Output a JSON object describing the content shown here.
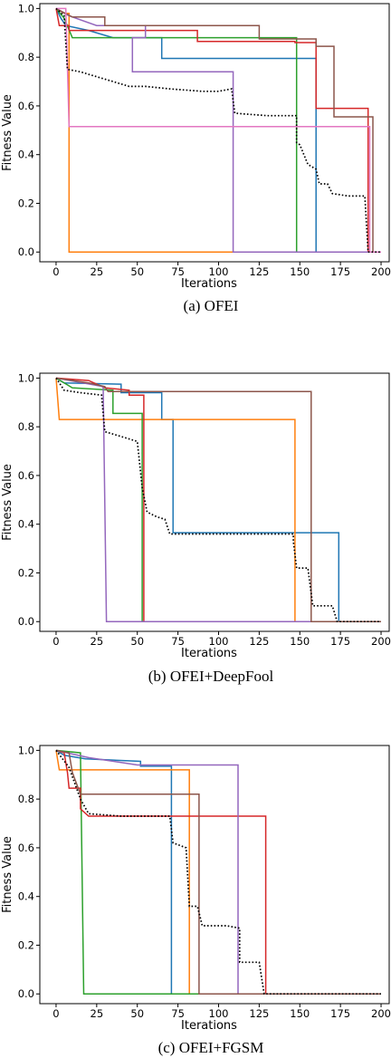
{
  "chart_data": [
    {
      "type": "line",
      "caption": "(a)  OFEI",
      "xlabel": "Iterations",
      "ylabel": "Fitness Value",
      "xlim": [
        -10,
        205
      ],
      "ylim": [
        -0.04,
        1.02
      ],
      "xticks": [
        0,
        25,
        50,
        75,
        100,
        125,
        150,
        175,
        200
      ],
      "yticks": [
        0.0,
        0.2,
        0.4,
        0.6,
        0.8,
        1.0
      ],
      "grid": false,
      "series": [
        {
          "color": "#1f77b4",
          "style": "solid",
          "points": [
            [
              0,
              1.0
            ],
            [
              3,
              0.96
            ],
            [
              6,
              0.93
            ],
            [
              20,
              0.91
            ],
            [
              35,
              0.88
            ],
            [
              65,
              0.88
            ],
            [
              65,
              0.795
            ],
            [
              160,
              0.795
            ],
            [
              160,
              0.0
            ],
            [
              200,
              0.0
            ]
          ]
        },
        {
          "color": "#ff7f0e",
          "style": "solid",
          "points": [
            [
              0,
              1.0
            ],
            [
              5,
              0.98
            ],
            [
              8,
              0.98
            ],
            [
              8,
              0.0
            ],
            [
              200,
              0.0
            ]
          ]
        },
        {
          "color": "#2ca02c",
          "style": "solid",
          "points": [
            [
              0,
              1.0
            ],
            [
              5,
              0.96
            ],
            [
              10,
              0.88
            ],
            [
              148,
              0.88
            ],
            [
              148,
              0.0
            ],
            [
              200,
              0.0
            ]
          ]
        },
        {
          "color": "#d62728",
          "style": "solid",
          "points": [
            [
              0,
              1.0
            ],
            [
              2,
              0.93
            ],
            [
              8,
              0.93
            ],
            [
              8,
              0.91
            ],
            [
              87,
              0.91
            ],
            [
              87,
              0.865
            ],
            [
              147,
              0.865
            ],
            [
              147,
              0.86
            ],
            [
              160,
              0.86
            ],
            [
              160,
              0.59
            ],
            [
              192,
              0.59
            ],
            [
              192,
              0.0
            ],
            [
              200,
              0.0
            ]
          ]
        },
        {
          "color": "#9467bd",
          "style": "solid",
          "points": [
            [
              0,
              1.0
            ],
            [
              8,
              0.97
            ],
            [
              25,
              0.93
            ],
            [
              55,
              0.93
            ],
            [
              55,
              0.88
            ],
            [
              47,
              0.88
            ],
            [
              47,
              0.74
            ],
            [
              109,
              0.74
            ],
            [
              109,
              0.0
            ],
            [
              200,
              0.0
            ]
          ]
        },
        {
          "color": "#8c564b",
          "style": "solid",
          "points": [
            [
              0,
              1.0
            ],
            [
              10,
              0.965
            ],
            [
              30,
              0.965
            ],
            [
              30,
              0.93
            ],
            [
              125,
              0.93
            ],
            [
              125,
              0.875
            ],
            [
              160,
              0.875
            ],
            [
              160,
              0.845
            ],
            [
              171,
              0.845
            ],
            [
              171,
              0.555
            ],
            [
              195,
              0.555
            ],
            [
              195,
              0.0
            ],
            [
              200,
              0.0
            ]
          ]
        },
        {
          "color": "#e377c2",
          "style": "solid",
          "points": [
            [
              0,
              1.0
            ],
            [
              6,
              1.0
            ],
            [
              8,
              0.515
            ],
            [
              193,
              0.515
            ],
            [
              193,
              0.0
            ],
            [
              200,
              0.0
            ]
          ]
        },
        {
          "color": "#000000",
          "style": "dotted",
          "points": [
            [
              0,
              1.0
            ],
            [
              5,
              0.97
            ],
            [
              7,
              0.75
            ],
            [
              15,
              0.74
            ],
            [
              25,
              0.72
            ],
            [
              35,
              0.7
            ],
            [
              45,
              0.68
            ],
            [
              55,
              0.68
            ],
            [
              70,
              0.67
            ],
            [
              90,
              0.66
            ],
            [
              100,
              0.66
            ],
            [
              108,
              0.67
            ],
            [
              110,
              0.57
            ],
            [
              130,
              0.56
            ],
            [
              148,
              0.56
            ],
            [
              148,
              0.45
            ],
            [
              150,
              0.44
            ],
            [
              155,
              0.36
            ],
            [
              160,
              0.34
            ],
            [
              162,
              0.28
            ],
            [
              167,
              0.28
            ],
            [
              170,
              0.24
            ],
            [
              180,
              0.23
            ],
            [
              190,
              0.23
            ],
            [
              192,
              0.0
            ],
            [
              200,
              0.0
            ]
          ]
        }
      ]
    },
    {
      "type": "line",
      "caption": "(b)  OFEI+DeepFool",
      "xlabel": "Iterations",
      "ylabel": "Fitness Value",
      "xlim": [
        -10,
        205
      ],
      "ylim": [
        -0.04,
        1.02
      ],
      "xticks": [
        0,
        25,
        50,
        75,
        100,
        125,
        150,
        175,
        200
      ],
      "yticks": [
        0.0,
        0.2,
        0.4,
        0.6,
        0.8,
        1.0
      ],
      "grid": false,
      "series": [
        {
          "color": "#1f77b4",
          "style": "solid",
          "points": [
            [
              0,
              1.0
            ],
            [
              5,
              0.98
            ],
            [
              40,
              0.975
            ],
            [
              40,
              0.94
            ],
            [
              65,
              0.94
            ],
            [
              65,
              0.83
            ],
            [
              72,
              0.83
            ],
            [
              72,
              0.365
            ],
            [
              174,
              0.365
            ],
            [
              174,
              0.0
            ],
            [
              200,
              0.0
            ]
          ]
        },
        {
          "color": "#ff7f0e",
          "style": "solid",
          "points": [
            [
              0,
              1.0
            ],
            [
              2,
              0.83
            ],
            [
              147,
              0.83
            ],
            [
              147,
              0.0
            ],
            [
              200,
              0.0
            ]
          ]
        },
        {
          "color": "#2ca02c",
          "style": "solid",
          "points": [
            [
              0,
              1.0
            ],
            [
              10,
              0.96
            ],
            [
              35,
              0.95
            ],
            [
              35,
              0.855
            ],
            [
              53,
              0.855
            ],
            [
              53,
              0.0
            ],
            [
              200,
              0.0
            ]
          ]
        },
        {
          "color": "#d62728",
          "style": "solid",
          "points": [
            [
              0,
              1.0
            ],
            [
              20,
              0.99
            ],
            [
              30,
              0.96
            ],
            [
              45,
              0.95
            ],
            [
              45,
              0.93
            ],
            [
              54,
              0.93
            ],
            [
              54,
              0.0
            ],
            [
              200,
              0.0
            ]
          ]
        },
        {
          "color": "#9467bd",
          "style": "solid",
          "points": [
            [
              0,
              1.0
            ],
            [
              29,
              0.965
            ],
            [
              31,
              0.0
            ],
            [
              200,
              0.0
            ]
          ]
        },
        {
          "color": "#8c564b",
          "style": "solid",
          "points": [
            [
              0,
              1.0
            ],
            [
              20,
              0.98
            ],
            [
              30,
              0.965
            ],
            [
              32,
              0.945
            ],
            [
              157,
              0.945
            ],
            [
              157,
              0.0
            ],
            [
              200,
              0.0
            ]
          ]
        },
        {
          "color": "#000000",
          "style": "dotted",
          "points": [
            [
              0,
              1.0
            ],
            [
              5,
              0.95
            ],
            [
              15,
              0.94
            ],
            [
              28,
              0.93
            ],
            [
              30,
              0.78
            ],
            [
              40,
              0.76
            ],
            [
              50,
              0.74
            ],
            [
              53,
              0.55
            ],
            [
              56,
              0.45
            ],
            [
              62,
              0.43
            ],
            [
              67,
              0.42
            ],
            [
              70,
              0.36
            ],
            [
              80,
              0.36
            ],
            [
              146,
              0.36
            ],
            [
              146,
              0.33
            ],
            [
              148,
              0.22
            ],
            [
              155,
              0.22
            ],
            [
              158,
              0.065
            ],
            [
              170,
              0.065
            ],
            [
              173,
              0.0
            ],
            [
              200,
              0.0
            ]
          ]
        }
      ]
    },
    {
      "type": "line",
      "caption": "(c)  OFEI+FGSM",
      "xlabel": "Iterations",
      "ylabel": "Fitness Value",
      "xlim": [
        -10,
        205
      ],
      "ylim": [
        -0.04,
        1.02
      ],
      "xticks": [
        0,
        25,
        50,
        75,
        100,
        125,
        150,
        175,
        200
      ],
      "yticks": [
        0.0,
        0.2,
        0.4,
        0.6,
        0.8,
        1.0
      ],
      "grid": false,
      "series": [
        {
          "color": "#1f77b4",
          "style": "solid",
          "points": [
            [
              0,
              1.0
            ],
            [
              5,
              0.98
            ],
            [
              18,
              0.965
            ],
            [
              52,
              0.955
            ],
            [
              52,
              0.935
            ],
            [
              71,
              0.935
            ],
            [
              71,
              0.0
            ],
            [
              200,
              0.0
            ]
          ]
        },
        {
          "color": "#ff7f0e",
          "style": "solid",
          "points": [
            [
              0,
              1.0
            ],
            [
              2,
              0.92
            ],
            [
              82,
              0.92
            ],
            [
              82,
              0.0
            ],
            [
              200,
              0.0
            ]
          ]
        },
        {
          "color": "#2ca02c",
          "style": "solid",
          "points": [
            [
              0,
              1.0
            ],
            [
              15,
              0.99
            ],
            [
              17,
              0.0
            ],
            [
              200,
              0.0
            ]
          ]
        },
        {
          "color": "#d62728",
          "style": "solid",
          "points": [
            [
              0,
              1.0
            ],
            [
              5,
              0.99
            ],
            [
              7,
              0.91
            ],
            [
              8,
              0.845
            ],
            [
              15,
              0.845
            ],
            [
              15,
              0.76
            ],
            [
              20,
              0.73
            ],
            [
              129,
              0.73
            ],
            [
              129,
              0.0
            ],
            [
              200,
              0.0
            ]
          ]
        },
        {
          "color": "#9467bd",
          "style": "solid",
          "points": [
            [
              0,
              1.0
            ],
            [
              10,
              0.985
            ],
            [
              20,
              0.97
            ],
            [
              40,
              0.95
            ],
            [
              50,
              0.94
            ],
            [
              112,
              0.94
            ],
            [
              112,
              0.0
            ],
            [
              200,
              0.0
            ]
          ]
        },
        {
          "color": "#8c564b",
          "style": "solid",
          "points": [
            [
              0,
              1.0
            ],
            [
              8,
              0.99
            ],
            [
              10,
              0.91
            ],
            [
              15,
              0.82
            ],
            [
              88,
              0.82
            ],
            [
              88,
              0.0
            ],
            [
              200,
              0.0
            ]
          ]
        },
        {
          "color": "#000000",
          "style": "dotted",
          "points": [
            [
              0,
              1.0
            ],
            [
              8,
              0.93
            ],
            [
              15,
              0.8
            ],
            [
              20,
              0.74
            ],
            [
              40,
              0.73
            ],
            [
              60,
              0.73
            ],
            [
              70,
              0.73
            ],
            [
              72,
              0.62
            ],
            [
              80,
              0.6
            ],
            [
              82,
              0.36
            ],
            [
              87,
              0.36
            ],
            [
              90,
              0.28
            ],
            [
              105,
              0.28
            ],
            [
              113,
              0.27
            ],
            [
              113,
              0.13
            ],
            [
              125,
              0.13
            ],
            [
              128,
              0.0
            ],
            [
              200,
              0.0
            ]
          ]
        }
      ]
    }
  ]
}
